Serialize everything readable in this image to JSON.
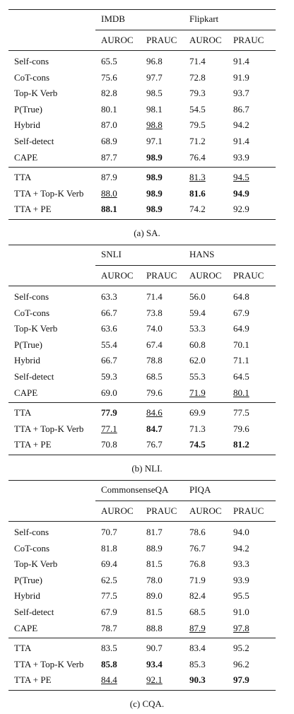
{
  "tables": [
    {
      "caption": "(a) SA.",
      "groups": [
        "IMDB",
        "Flipkart"
      ],
      "columns": [
        "AUROC",
        "PRAUC",
        "AUROC",
        "PRAUC"
      ],
      "sections": [
        [
          [
            "Self-cons",
            "65.5",
            "96.8",
            "71.4",
            "91.4"
          ],
          [
            "CoT-cons",
            "75.6",
            "97.7",
            "72.8",
            "91.9"
          ],
          [
            "Top-K Verb",
            "82.8",
            "98.5",
            "79.3",
            "93.7"
          ],
          [
            "P(True)",
            "80.1",
            "98.1",
            "54.5",
            "86.7"
          ],
          [
            "Hybrid",
            "87.0",
            {
              "text": "98.8",
              "style": "underline"
            },
            "79.5",
            "94.2"
          ],
          [
            "Self-detect",
            "68.9",
            "97.1",
            "71.2",
            "91.4"
          ],
          [
            "CAPE",
            "87.7",
            {
              "text": "98.9",
              "style": "bold"
            },
            "76.4",
            "93.9"
          ]
        ],
        [
          [
            "TTA",
            "87.9",
            {
              "text": "98.9",
              "style": "bold"
            },
            {
              "text": "81.3",
              "style": "underline"
            },
            {
              "text": "94.5",
              "style": "underline"
            }
          ],
          [
            "TTA + Top-K Verb",
            {
              "text": "88.0",
              "style": "underline"
            },
            {
              "text": "98.9",
              "style": "bold"
            },
            {
              "text": "81.6",
              "style": "bold"
            },
            {
              "text": "94.9",
              "style": "bold"
            }
          ],
          [
            "TTA + PE",
            {
              "text": "88.1",
              "style": "bold"
            },
            {
              "text": "98.9",
              "style": "bold"
            },
            "74.2",
            "92.9"
          ]
        ]
      ]
    },
    {
      "caption": "(b) NLI.",
      "groups": [
        "SNLI",
        "HANS"
      ],
      "columns": [
        "AUROC",
        "PRAUC",
        "AUROC",
        "PRAUC"
      ],
      "sections": [
        [
          [
            "Self-cons",
            "63.3",
            "71.4",
            "56.0",
            "64.8"
          ],
          [
            "CoT-cons",
            "66.7",
            "73.8",
            "59.4",
            "67.9"
          ],
          [
            "Top-K Verb",
            "63.6",
            "74.0",
            "53.3",
            "64.9"
          ],
          [
            "P(True)",
            "55.4",
            "67.4",
            "60.8",
            "70.1"
          ],
          [
            "Hybrid",
            "66.7",
            "78.8",
            "62.0",
            "71.1"
          ],
          [
            "Self-detect",
            "59.3",
            "68.5",
            "55.3",
            "64.5"
          ],
          [
            "CAPE",
            "69.0",
            "79.6",
            {
              "text": "71.9",
              "style": "underline"
            },
            {
              "text": "80.1",
              "style": "underline"
            }
          ]
        ],
        [
          [
            "TTA",
            {
              "text": "77.9",
              "style": "bold"
            },
            {
              "text": "84.6",
              "style": "underline"
            },
            "69.9",
            "77.5"
          ],
          [
            "TTA + Top-K Verb",
            {
              "text": "77.1",
              "style": "underline"
            },
            {
              "text": "84.7",
              "style": "bold"
            },
            "71.3",
            "79.6"
          ],
          [
            "TTA + PE",
            "70.8",
            "76.7",
            {
              "text": "74.5",
              "style": "bold"
            },
            {
              "text": "81.2",
              "style": "bold"
            }
          ]
        ]
      ]
    },
    {
      "caption": "(c) CQA.",
      "groups": [
        "CommonsenseQA",
        "PIQA"
      ],
      "columns": [
        "AUROC",
        "PRAUC",
        "AUROC",
        "PRAUC"
      ],
      "sections": [
        [
          [
            "Self-cons",
            "70.7",
            "81.7",
            "78.6",
            "94.0"
          ],
          [
            "CoT-cons",
            "81.8",
            "88.9",
            "76.7",
            "94.2"
          ],
          [
            "Top-K Verb",
            "69.4",
            "81.5",
            "76.8",
            "93.3"
          ],
          [
            "P(True)",
            "62.5",
            "78.0",
            "71.9",
            "93.9"
          ],
          [
            "Hybrid",
            "77.5",
            "89.0",
            "82.4",
            "95.5"
          ],
          [
            "Self-detect",
            "67.9",
            "81.5",
            "68.5",
            "91.0"
          ],
          [
            "CAPE",
            "78.7",
            "88.8",
            {
              "text": "87.9",
              "style": "underline"
            },
            {
              "text": "97.8",
              "style": "underline"
            }
          ]
        ],
        [
          [
            "TTA",
            "83.5",
            "90.7",
            "83.4",
            "95.2"
          ],
          [
            "TTA + Top-K Verb",
            {
              "text": "85.8",
              "style": "bold"
            },
            {
              "text": "93.4",
              "style": "bold"
            },
            "85.3",
            "96.2"
          ],
          [
            "TTA + PE",
            {
              "text": "84.4",
              "style": "underline"
            },
            {
              "text": "92.1",
              "style": "underline"
            },
            {
              "text": "90.3",
              "style": "bold"
            },
            {
              "text": "97.9",
              "style": "bold"
            }
          ]
        ]
      ]
    }
  ]
}
